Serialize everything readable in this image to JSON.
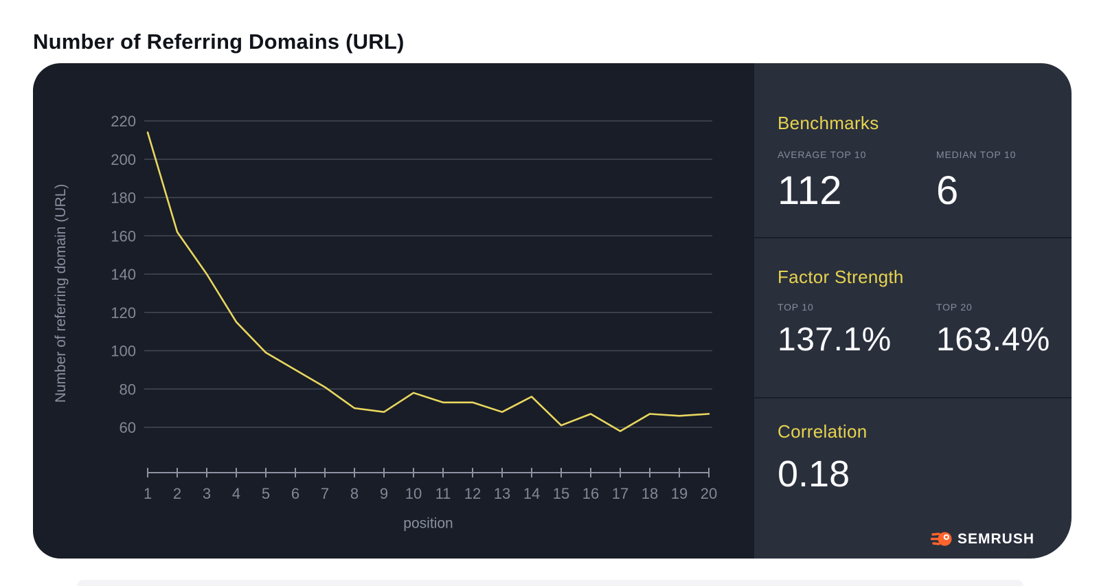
{
  "page_title": "Number of Referring Domains (URL)",
  "panel": {
    "benchmarks": {
      "heading": "Benchmarks",
      "stats": [
        {
          "label": "AVERAGE TOP 10",
          "value": "112"
        },
        {
          "label": "MEDIAN TOP 10",
          "value": "6"
        }
      ]
    },
    "factor_strength": {
      "heading": "Factor Strength",
      "stats": [
        {
          "label": "TOP 10",
          "value": "137.1%"
        },
        {
          "label": "TOP 20",
          "value": "163.4%"
        }
      ]
    },
    "correlation": {
      "heading": "Correlation",
      "value": "0.18"
    },
    "logo_text": "SEMRUSH"
  },
  "colors": {
    "accent_yellow": "#e6d44e",
    "line_yellow": "#e9d75f",
    "logo_orange": "#ff642d",
    "chart_background": "#191d27",
    "panel_background": "#2a2f3c",
    "value_white": "#fafbfd"
  },
  "chart_data": {
    "type": "line",
    "x": [
      1,
      2,
      3,
      4,
      5,
      6,
      7,
      8,
      9,
      10,
      11,
      12,
      13,
      14,
      15,
      16,
      17,
      18,
      19,
      20
    ],
    "values": [
      214,
      162,
      140,
      115,
      99,
      90,
      81,
      70,
      68,
      78,
      73,
      73,
      68,
      76,
      61,
      67,
      58,
      67,
      66,
      67
    ],
    "title": "Number of Referring Domains (URL)",
    "xlabel": "position",
    "ylabel": "Number of referring domain (URL)",
    "yticks": [
      60,
      80,
      100,
      120,
      140,
      160,
      180,
      200,
      220
    ],
    "ylim": [
      50,
      228
    ],
    "grid": true,
    "legend": "none",
    "line_color": "#e9d75f"
  }
}
